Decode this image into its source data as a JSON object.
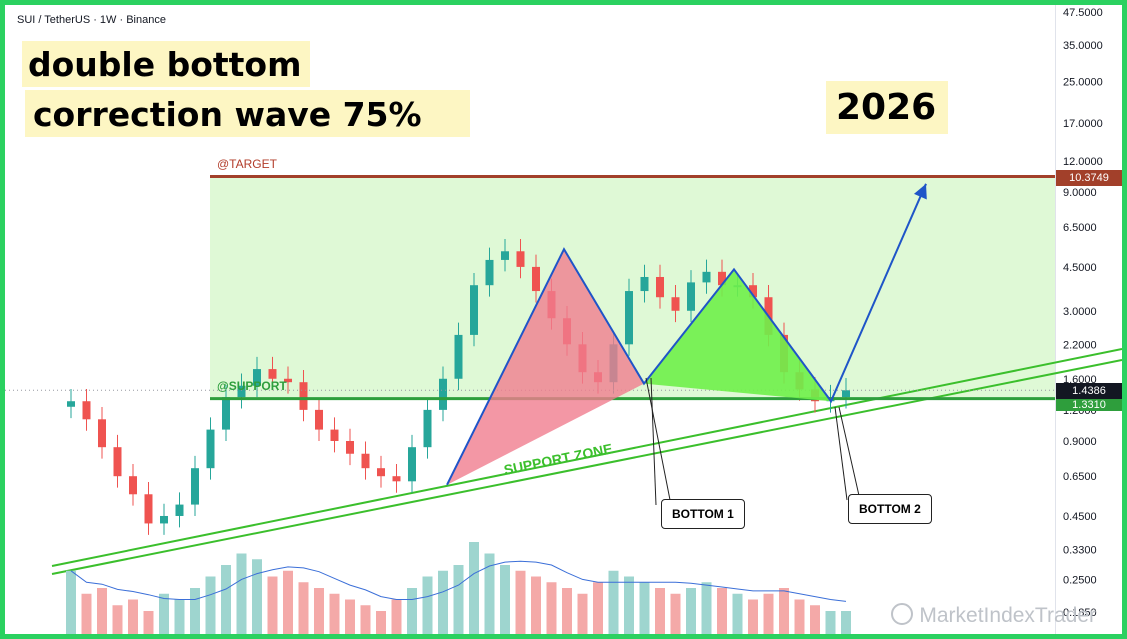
{
  "header": {
    "symbol": "SUI / TetherUS · 1W · Binance"
  },
  "annotations": {
    "title_line1": "double bottom",
    "title_line2": "correction wave 75%",
    "year": "2026",
    "target_label": "@TARGET",
    "support_label": "@SUPPORT",
    "support_zone_label": "SUPPORT ZONE",
    "bottom1": "BOTTOM 1",
    "bottom2": "BOTTOM 2"
  },
  "price_tags": {
    "target": "10.3749",
    "current": "1.4386",
    "support": "1.3310"
  },
  "watermark": "MarketIndexTrader",
  "colors": {
    "up": "#26a69a",
    "down": "#ef5350",
    "target_line": "#a2402a",
    "support_line": "#2e9e3c",
    "zone_fill": "#dff9d6",
    "trend_line": "#3bbf2c",
    "arrow": "#1f55c8",
    "pattern_red": "#f07d8f",
    "pattern_green": "#6ff04a"
  },
  "chart_data": {
    "type": "candlestick",
    "title": "SUI / TetherUS · 1W · Binance",
    "yscale": "log",
    "ylim": [
      0.15,
      50
    ],
    "yticks": [
      "47.5000",
      "35.0000",
      "25.0000",
      "17.0000",
      "12.0000",
      "9.0000",
      "6.5000",
      "4.5000",
      "3.0000",
      "2.2000",
      "1.6000",
      "1.2000",
      "0.9000",
      "0.6500",
      "0.4500",
      "0.3300",
      "0.2500",
      "0.1850"
    ],
    "levels": {
      "target": 10.3749,
      "support": 1.331,
      "current": 1.4386
    },
    "keypoints": {
      "first_low": 0.6,
      "peak1": 5.3,
      "bottom1": 1.53,
      "peak2": 4.4,
      "bottom2": 1.3,
      "projected": 9.7
    },
    "path": [
      1.3,
      1.1,
      0.85,
      0.65,
      0.55,
      0.42,
      0.45,
      0.5,
      0.7,
      1.0,
      1.35,
      1.5,
      1.75,
      1.6,
      1.55,
      1.2,
      1.0,
      0.9,
      0.8,
      0.7,
      0.65,
      0.62,
      0.85,
      1.2,
      1.6,
      2.4,
      3.8,
      4.8,
      5.2,
      4.5,
      3.6,
      2.8,
      2.2,
      1.7,
      1.55,
      2.2,
      3.6,
      4.1,
      3.4,
      3.0,
      3.9,
      4.3,
      3.8,
      3.8,
      3.4,
      2.4,
      1.7,
      1.45,
      1.3,
      1.35,
      1.4386
    ],
    "volume_rel": [
      0.55,
      0.35,
      0.4,
      0.25,
      0.3,
      0.2,
      0.35,
      0.3,
      0.4,
      0.5,
      0.6,
      0.7,
      0.65,
      0.5,
      0.55,
      0.45,
      0.4,
      0.35,
      0.3,
      0.25,
      0.2,
      0.3,
      0.4,
      0.5,
      0.55,
      0.6,
      0.8,
      0.7,
      0.6,
      0.55,
      0.5,
      0.45,
      0.4,
      0.35,
      0.45,
      0.55,
      0.5,
      0.45,
      0.4,
      0.35,
      0.4,
      0.45,
      0.4,
      0.35,
      0.3,
      0.35,
      0.4,
      0.3,
      0.25,
      0.2,
      0.2
    ]
  }
}
